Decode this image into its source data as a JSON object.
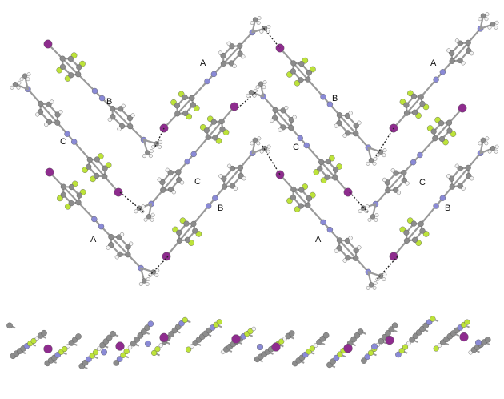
{
  "figure": {
    "molecule_labels": [
      "A",
      "B",
      "C",
      "C",
      "B",
      "A",
      "A",
      "B",
      "C",
      "C",
      "B",
      "A"
    ]
  },
  "colors": {
    "carbon": "#8c8c8c",
    "hydrogen": "#f4f4f4",
    "nitrogen": "#8a8ad6",
    "fluorine": "#bde33a",
    "iodine": "#8e2c8e",
    "halogen_bond": "#222222"
  }
}
